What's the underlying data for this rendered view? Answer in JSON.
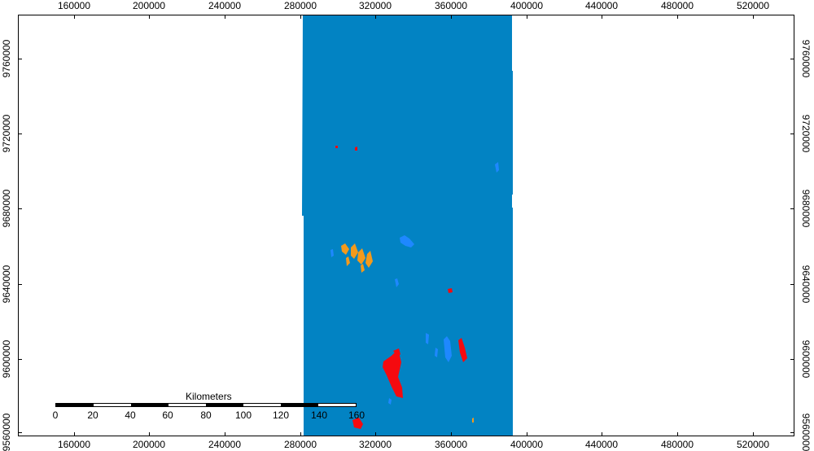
{
  "map": {
    "x_ticks": [
      "160000",
      "200000",
      "240000",
      "280000",
      "320000",
      "360000",
      "400000",
      "440000",
      "480000",
      "520000"
    ],
    "y_ticks": [
      "9760000",
      "9720000",
      "9680000",
      "9640000",
      "9600000",
      "9560000"
    ],
    "colors": {
      "raster_fill": "#0283C3",
      "water_light": "#1E88FF",
      "change_orange": "#F39A1C",
      "change_red": "#F50A0F",
      "background": "#FFFFFF"
    }
  },
  "scalebar": {
    "title": "Kilometers",
    "labels": [
      "0",
      "20",
      "40",
      "60",
      "80",
      "100",
      "120",
      "140",
      "160"
    ]
  }
}
